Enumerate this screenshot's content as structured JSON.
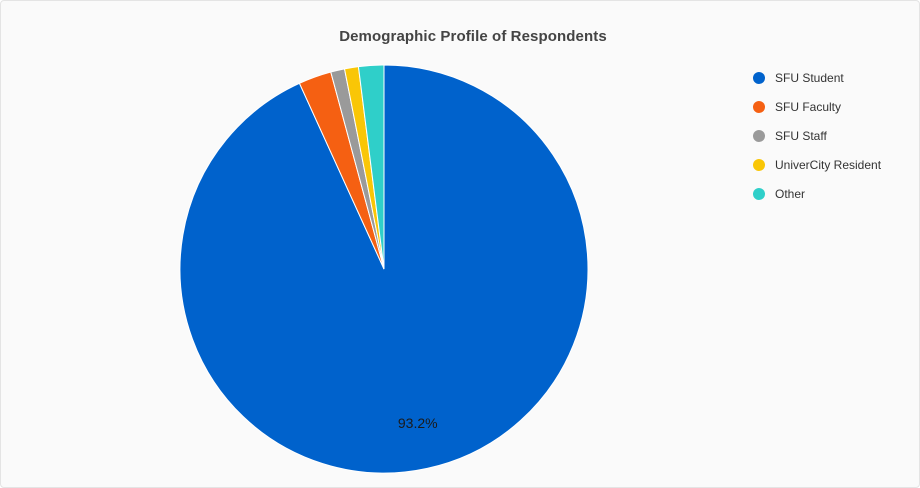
{
  "chart_data": {
    "type": "pie",
    "title": "Demographic Profile of Respondents",
    "categories": [
      "SFU Student",
      "SFU Faculty",
      "SFU Staff",
      "UniverCity Resident",
      "Other"
    ],
    "values": [
      93.2,
      2.6,
      1.1,
      1.1,
      2.0
    ],
    "unit": "%",
    "colors": [
      "#0062cc",
      "#f56012",
      "#9a9a9a",
      "#f9c606",
      "#2fcfc9"
    ],
    "data_labels": [
      "93.2%",
      "",
      "",
      "",
      ""
    ],
    "start_angle_deg": 0,
    "direction": "clockwise",
    "legend_position": "right"
  }
}
